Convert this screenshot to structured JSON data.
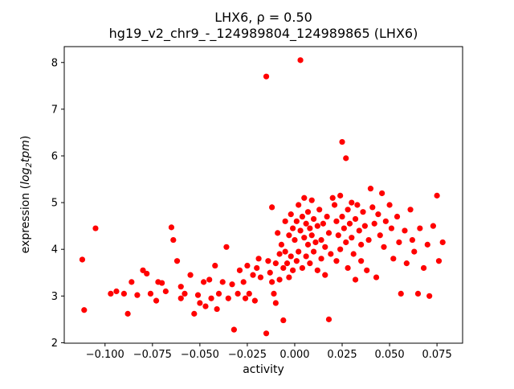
{
  "title": {
    "line1": "LHX6, ρ = 0.50",
    "line2": "hg19_v2_chr9_-_124989804_124989865 (LHX6)"
  },
  "axes": {
    "xlabel": "activity",
    "ylabel_parts": {
      "prefix": "expression (",
      "log": "log",
      "sub": "2",
      "var": "tpm",
      "suffix": ")"
    },
    "xlim": [
      -0.1215,
      0.0885
    ],
    "ylim": [
      1.99,
      8.34
    ],
    "xticks": {
      "values": [
        -0.1,
        -0.075,
        -0.05,
        -0.025,
        0.0,
        0.025,
        0.05,
        0.075
      ],
      "labels": [
        "−0.100",
        "−0.075",
        "−0.050",
        "−0.025",
        "0.000",
        "0.025",
        "0.050",
        "0.075"
      ]
    },
    "yticks": {
      "values": [
        2,
        3,
        4,
        5,
        6,
        7,
        8
      ],
      "labels": [
        "2",
        "3",
        "4",
        "5",
        "6",
        "7",
        "8"
      ]
    }
  },
  "chart_data": {
    "type": "scatter",
    "title": "LHX6, ρ = 0.50\nhg19_v2_chr9_-_124989804_124989865 (LHX6)",
    "xlabel": "activity",
    "ylabel": "expression (log2tpm)",
    "legend": "none",
    "grid": false,
    "marker_color": "#ff0000",
    "marker_size": 3.6,
    "xlim": [
      -0.1215,
      0.0885
    ],
    "ylim": [
      1.99,
      8.34
    ],
    "points": [
      [
        -0.112,
        3.78
      ],
      [
        -0.111,
        2.7
      ],
      [
        -0.105,
        4.45
      ],
      [
        -0.097,
        3.05
      ],
      [
        -0.094,
        3.1
      ],
      [
        -0.09,
        3.05
      ],
      [
        -0.088,
        2.62
      ],
      [
        -0.086,
        3.3
      ],
      [
        -0.083,
        3.02
      ],
      [
        -0.08,
        3.55
      ],
      [
        -0.078,
        3.48
      ],
      [
        -0.076,
        3.05
      ],
      [
        -0.073,
        2.9
      ],
      [
        -0.072,
        3.3
      ],
      [
        -0.07,
        3.28
      ],
      [
        -0.068,
        3.1
      ],
      [
        -0.065,
        4.47
      ],
      [
        -0.064,
        4.2
      ],
      [
        -0.062,
        3.75
      ],
      [
        -0.06,
        3.2
      ],
      [
        -0.06,
        2.95
      ],
      [
        -0.058,
        3.05
      ],
      [
        -0.055,
        3.45
      ],
      [
        -0.053,
        2.62
      ],
      [
        -0.051,
        3.02
      ],
      [
        -0.05,
        2.85
      ],
      [
        -0.048,
        3.3
      ],
      [
        -0.047,
        2.78
      ],
      [
        -0.045,
        3.35
      ],
      [
        -0.044,
        2.95
      ],
      [
        -0.042,
        3.65
      ],
      [
        -0.041,
        2.72
      ],
      [
        -0.04,
        3.05
      ],
      [
        -0.038,
        3.3
      ],
      [
        -0.036,
        4.05
      ],
      [
        -0.035,
        2.95
      ],
      [
        -0.033,
        3.25
      ],
      [
        -0.032,
        2.28
      ],
      [
        -0.03,
        3.05
      ],
      [
        -0.029,
        3.55
      ],
      [
        -0.027,
        3.3
      ],
      [
        -0.026,
        2.95
      ],
      [
        -0.025,
        3.65
      ],
      [
        -0.024,
        3.05
      ],
      [
        -0.022,
        3.45
      ],
      [
        -0.021,
        2.9
      ],
      [
        -0.02,
        3.6
      ],
      [
        -0.019,
        3.8
      ],
      [
        -0.018,
        3.4
      ],
      [
        -0.015,
        2.2
      ],
      [
        -0.015,
        7.7
      ],
      [
        -0.014,
        3.75
      ],
      [
        -0.013,
        3.5
      ],
      [
        -0.012,
        4.9
      ],
      [
        -0.012,
        3.3
      ],
      [
        -0.011,
        3.05
      ],
      [
        -0.01,
        3.7
      ],
      [
        -0.01,
        2.85
      ],
      [
        -0.009,
        4.35
      ],
      [
        -0.008,
        3.9
      ],
      [
        -0.008,
        3.35
      ],
      [
        -0.007,
        4.1
      ],
      [
        -0.006,
        3.6
      ],
      [
        -0.006,
        2.48
      ],
      [
        -0.005,
        4.6
      ],
      [
        -0.005,
        3.95
      ],
      [
        -0.004,
        3.7
      ],
      [
        -0.003,
        4.3
      ],
      [
        -0.003,
        3.4
      ],
      [
        -0.002,
        4.75
      ],
      [
        -0.002,
        3.85
      ],
      [
        -0.001,
        4.45
      ],
      [
        -0.001,
        3.55
      ],
      [
        0.0,
        4.2
      ],
      [
        0.001,
        4.6
      ],
      [
        0.001,
        3.75
      ],
      [
        0.002,
        4.95
      ],
      [
        0.002,
        3.95
      ],
      [
        0.003,
        8.05
      ],
      [
        0.003,
        4.4
      ],
      [
        0.004,
        4.7
      ],
      [
        0.004,
        3.6
      ],
      [
        0.005,
        5.1
      ],
      [
        0.005,
        4.25
      ],
      [
        0.006,
        4.55
      ],
      [
        0.006,
        3.85
      ],
      [
        0.007,
        4.8
      ],
      [
        0.007,
        4.1
      ],
      [
        0.008,
        4.45
      ],
      [
        0.008,
        3.7
      ],
      [
        0.009,
        5.05
      ],
      [
        0.009,
        4.3
      ],
      [
        0.01,
        4.65
      ],
      [
        0.01,
        3.95
      ],
      [
        0.011,
        4.15
      ],
      [
        0.012,
        4.5
      ],
      [
        0.012,
        3.55
      ],
      [
        0.013,
        4.85
      ],
      [
        0.014,
        4.2
      ],
      [
        0.014,
        3.8
      ],
      [
        0.015,
        4.55
      ],
      [
        0.016,
        4.05
      ],
      [
        0.016,
        3.45
      ],
      [
        0.017,
        4.7
      ],
      [
        0.018,
        4.35
      ],
      [
        0.018,
        2.5
      ],
      [
        0.019,
        3.9
      ],
      [
        0.02,
        5.1
      ],
      [
        0.021,
        4.95
      ],
      [
        0.022,
        4.6
      ],
      [
        0.022,
        3.75
      ],
      [
        0.023,
        4.3
      ],
      [
        0.024,
        5.15
      ],
      [
        0.024,
        4.0
      ],
      [
        0.025,
        6.3
      ],
      [
        0.025,
        4.7
      ],
      [
        0.026,
        4.45
      ],
      [
        0.027,
        5.95
      ],
      [
        0.027,
        4.15
      ],
      [
        0.028,
        4.85
      ],
      [
        0.028,
        3.6
      ],
      [
        0.029,
        4.55
      ],
      [
        0.03,
        5.0
      ],
      [
        0.03,
        4.25
      ],
      [
        0.031,
        3.9
      ],
      [
        0.032,
        4.65
      ],
      [
        0.032,
        3.35
      ],
      [
        0.033,
        4.95
      ],
      [
        0.034,
        4.4
      ],
      [
        0.035,
        4.1
      ],
      [
        0.035,
        3.75
      ],
      [
        0.036,
        4.8
      ],
      [
        0.037,
        4.5
      ],
      [
        0.038,
        3.55
      ],
      [
        0.039,
        4.2
      ],
      [
        0.04,
        5.3
      ],
      [
        0.041,
        4.9
      ],
      [
        0.042,
        4.55
      ],
      [
        0.043,
        3.4
      ],
      [
        0.044,
        4.75
      ],
      [
        0.045,
        4.3
      ],
      [
        0.046,
        5.2
      ],
      [
        0.047,
        4.05
      ],
      [
        0.048,
        4.6
      ],
      [
        0.05,
        4.95
      ],
      [
        0.051,
        4.45
      ],
      [
        0.052,
        3.8
      ],
      [
        0.054,
        4.7
      ],
      [
        0.055,
        4.15
      ],
      [
        0.056,
        3.05
      ],
      [
        0.058,
        4.4
      ],
      [
        0.059,
        3.7
      ],
      [
        0.061,
        4.85
      ],
      [
        0.062,
        4.2
      ],
      [
        0.063,
        3.95
      ],
      [
        0.065,
        3.05
      ],
      [
        0.066,
        4.45
      ],
      [
        0.068,
        3.6
      ],
      [
        0.07,
        4.1
      ],
      [
        0.071,
        3.0
      ],
      [
        0.073,
        4.5
      ],
      [
        0.075,
        5.15
      ],
      [
        0.076,
        3.75
      ],
      [
        0.078,
        4.15
      ]
    ]
  }
}
